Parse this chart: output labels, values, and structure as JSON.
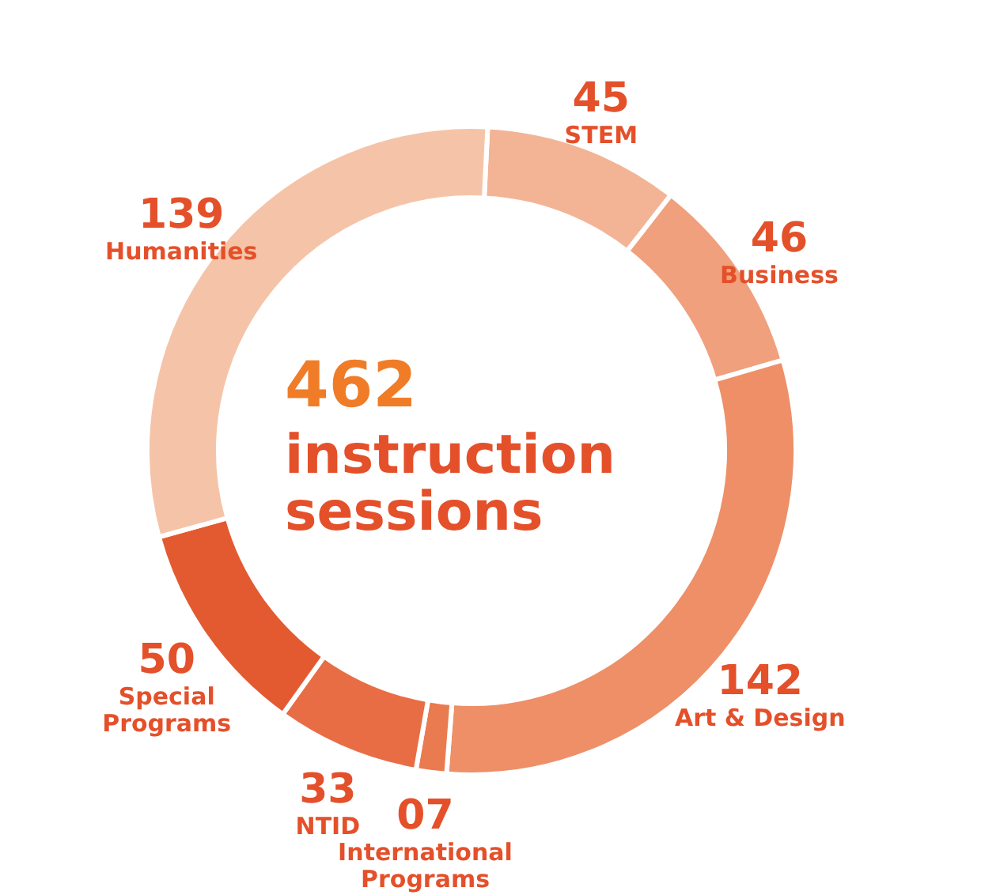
{
  "chart_data": {
    "type": "donut",
    "categories": [
      "STEM",
      "Business",
      "Art & Design",
      "International Programs",
      "NTID",
      "Special Programs",
      "Humanities"
    ],
    "values": [
      45,
      46,
      142,
      7,
      33,
      50,
      139
    ],
    "value_labels": [
      "45",
      "46",
      "142",
      "07",
      "33",
      "50",
      "139"
    ],
    "colors": [
      "#f3b496",
      "#f0a07c",
      "#ee8f68",
      "#ea7a50",
      "#e86d45",
      "#e45a30",
      "#f5c4a8"
    ],
    "annotations": [
      "462",
      "instruction sessions"
    ]
  }
}
